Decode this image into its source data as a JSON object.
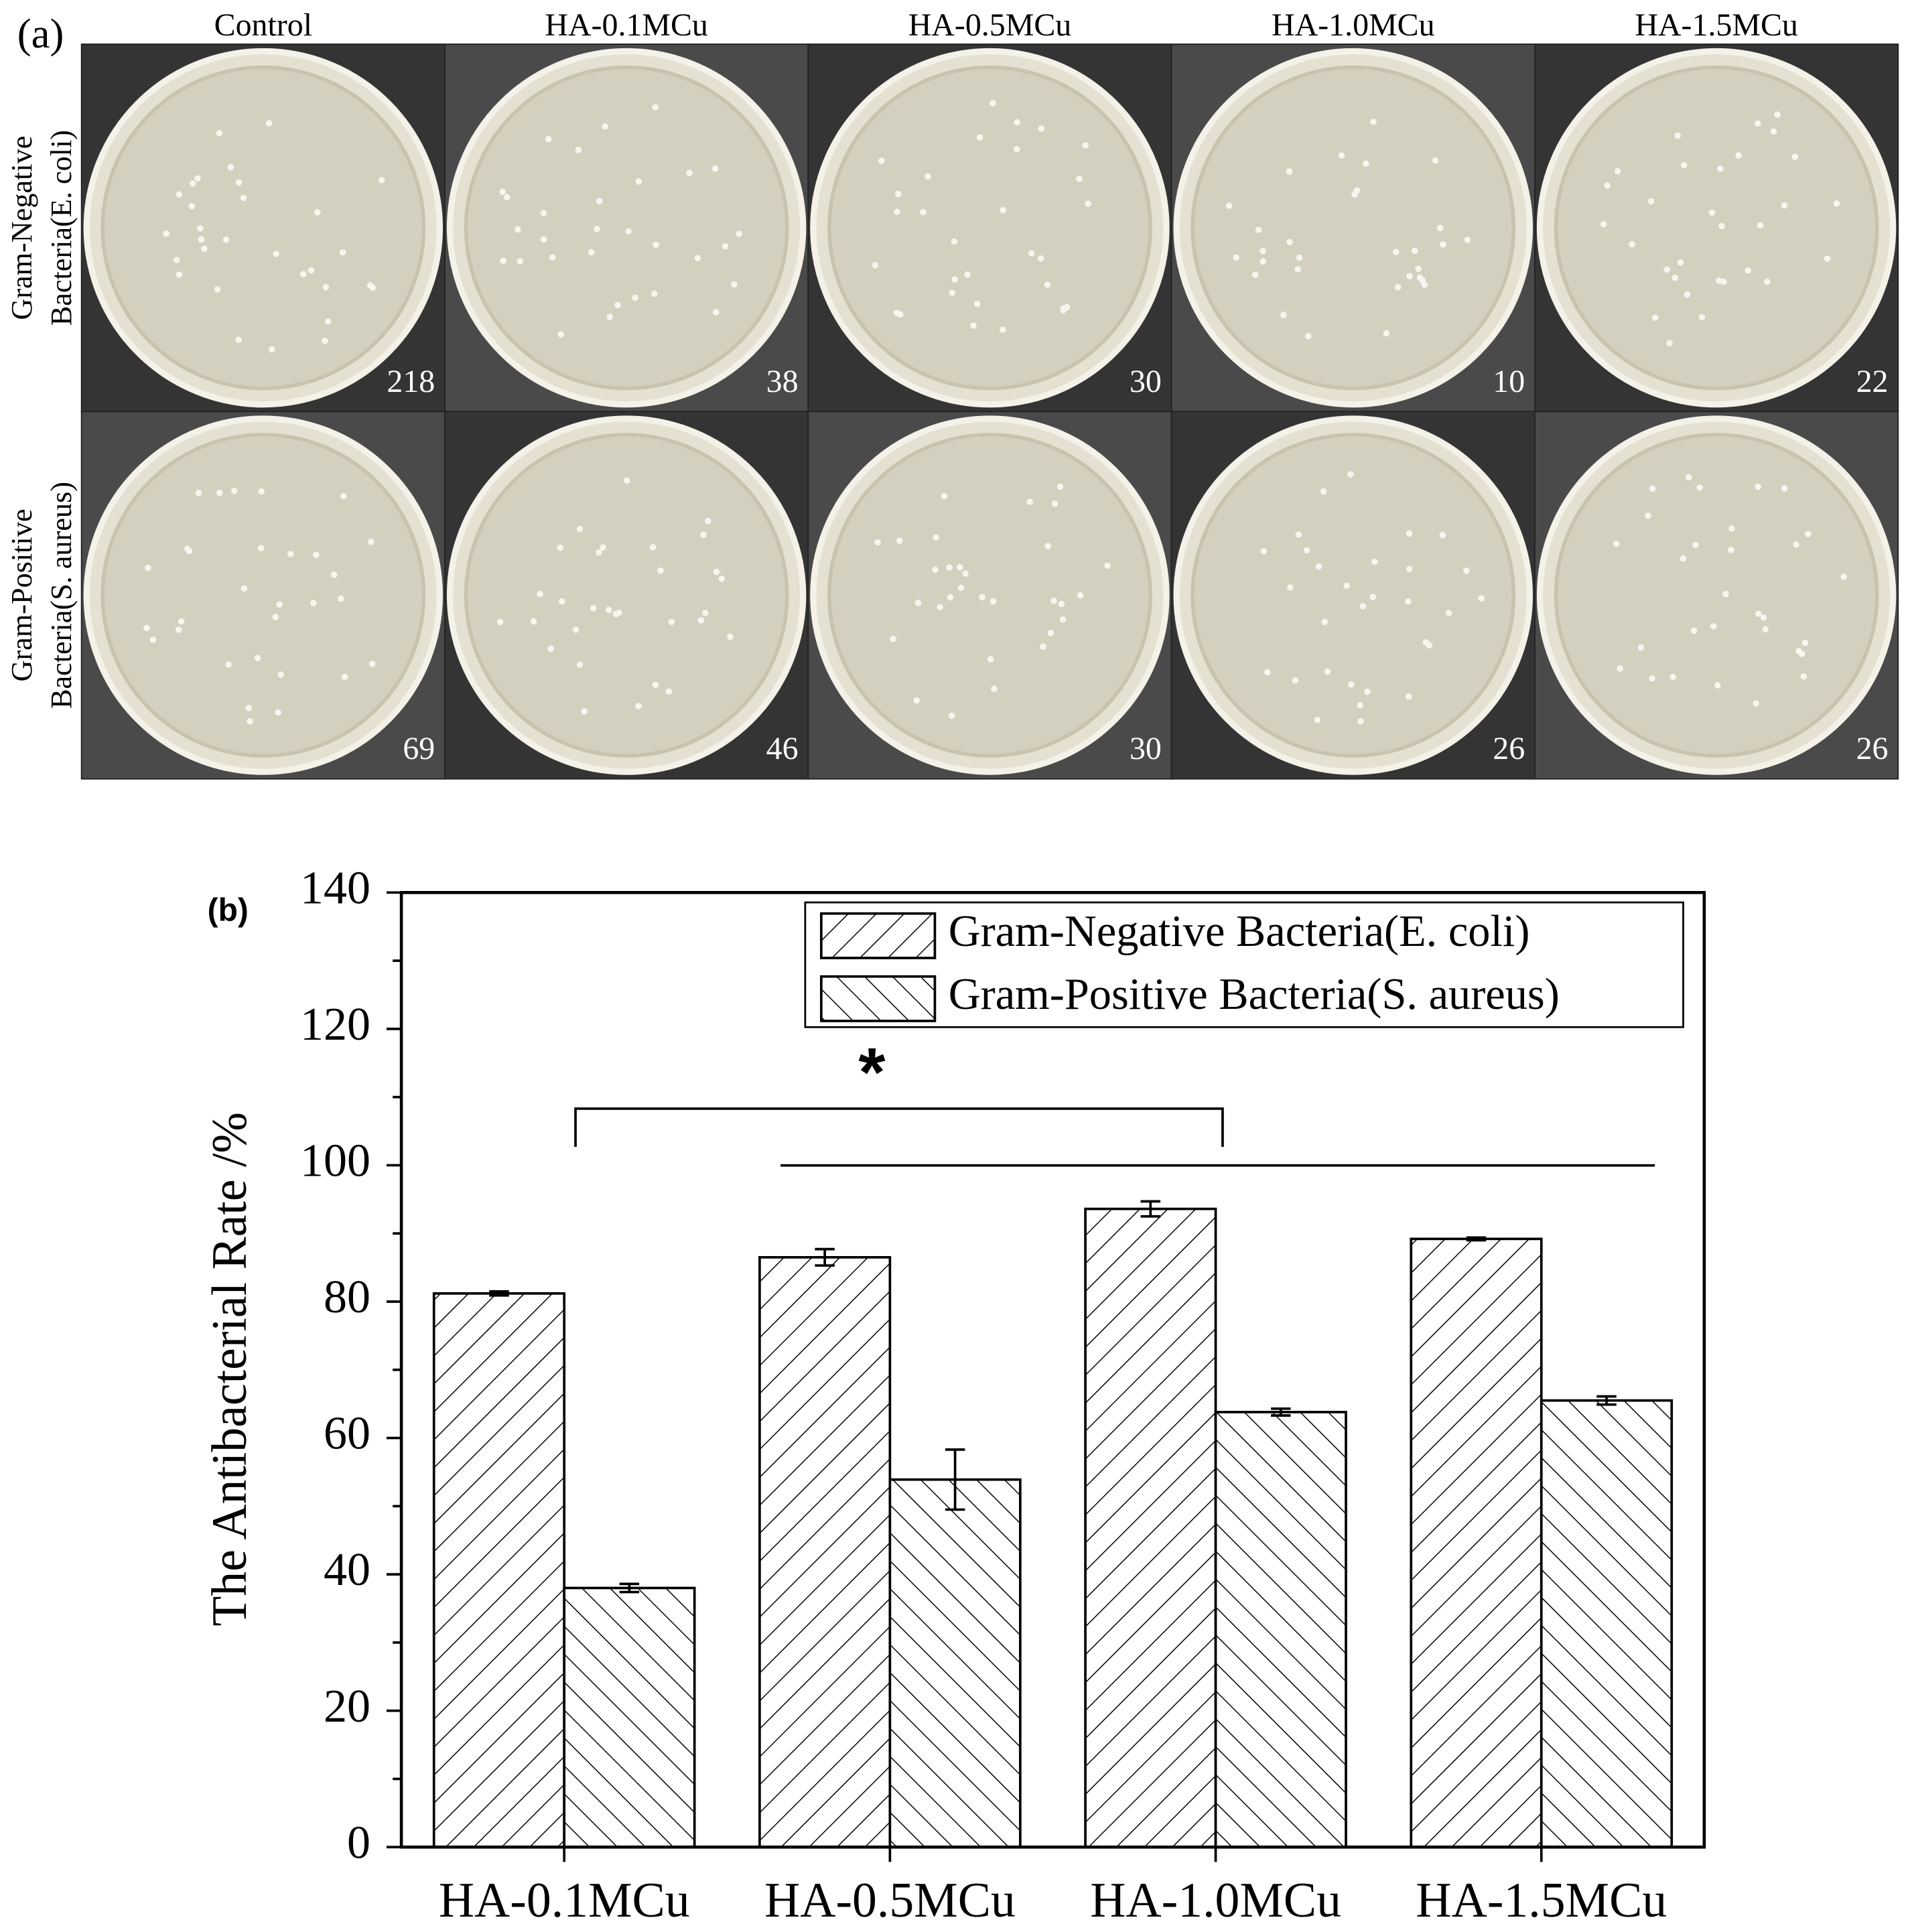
{
  "panel_a": {
    "label": "(a)",
    "columns": [
      "Control",
      "HA-0.1MCu",
      "HA-0.5MCu",
      "HA-1.0MCu",
      "HA-1.5MCu"
    ],
    "rows": [
      [
        "Gram-Negative",
        "Bacteria(E. coli)"
      ],
      [
        "Gram-Positive",
        "Bacteria(S. aureus)"
      ]
    ],
    "counts": [
      [
        218,
        38,
        30,
        10,
        22
      ],
      [
        69,
        46,
        30,
        26,
        26
      ]
    ]
  },
  "chart_data": {
    "type": "bar",
    "panel_label": "(b)",
    "y_label": "The Antibacterial Rate /%",
    "categories": [
      "HA-0.1MCu",
      "HA-0.5MCu",
      "HA-1.0MCu",
      "HA-1.5MCu"
    ],
    "series": [
      {
        "name": "Gram-Negative Bacteria(E. coli)",
        "color": "#000000",
        "hatch": "/",
        "values": [
          81.2,
          86.5,
          93.6,
          89.2
        ],
        "errors": [
          0.3,
          1.2,
          1.1,
          0.2
        ]
      },
      {
        "name": "Gram-Positive Bacteria(S. aureus)",
        "color": "#000000",
        "hatch": "\\",
        "values": [
          38.0,
          53.9,
          63.8,
          65.5
        ],
        "errors": [
          0.6,
          4.4,
          0.5,
          0.6
        ]
      }
    ],
    "annotation": "*",
    "ylim": [
      0,
      140
    ],
    "yticks": [
      0,
      20,
      40,
      60,
      80,
      100,
      120,
      140
    ]
  }
}
